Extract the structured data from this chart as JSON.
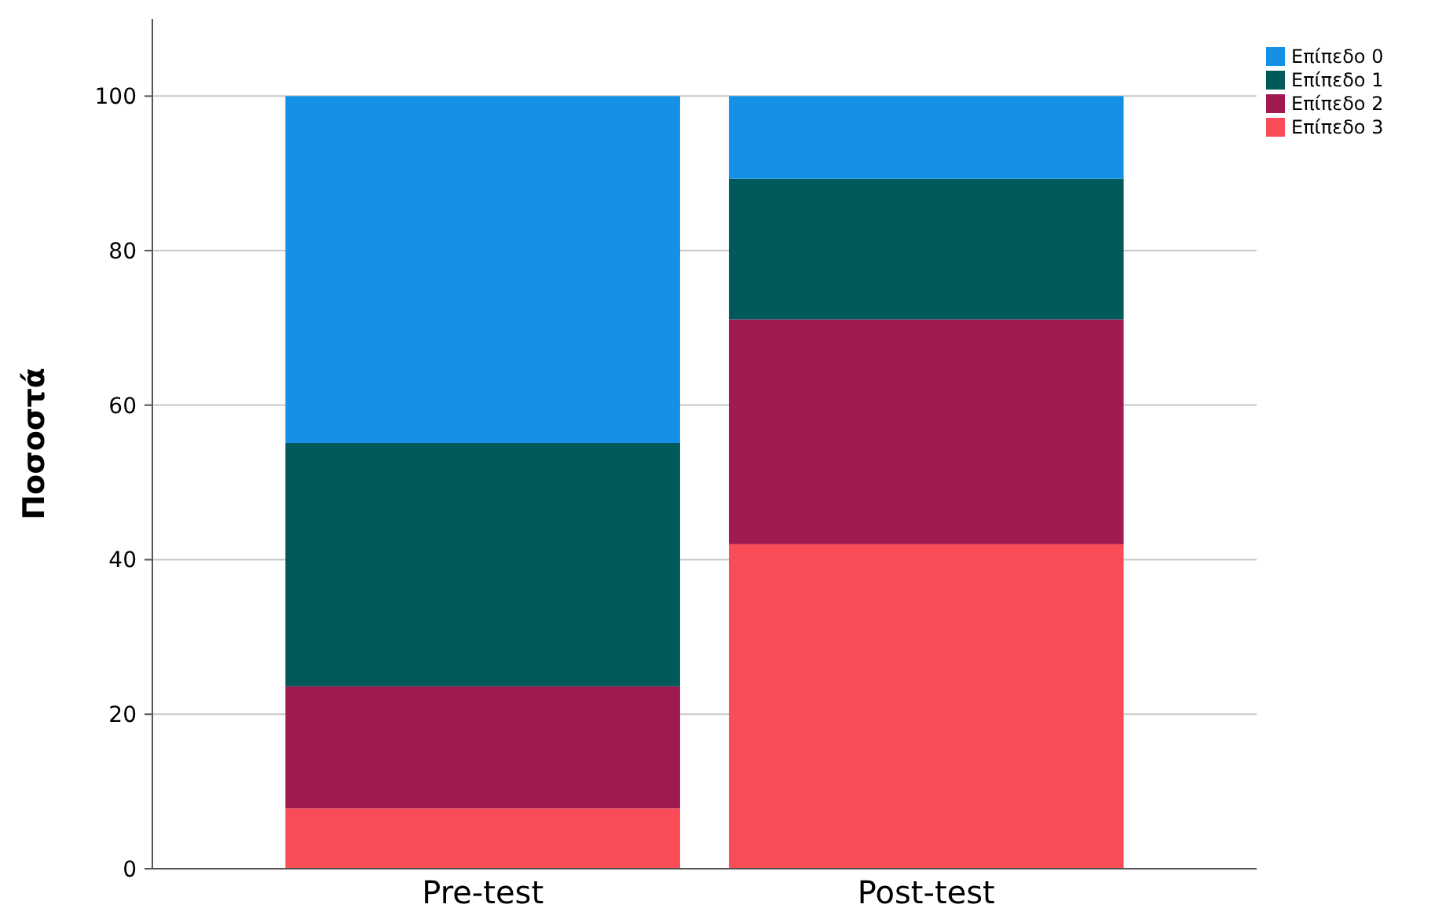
{
  "chart_data": {
    "type": "bar",
    "stacked": true,
    "ylabel": "Ποσοστά",
    "categories": [
      "Pre-test",
      "Post-test"
    ],
    "series": [
      {
        "name": "Επίπεδο 3",
        "color": "#fa4c56",
        "values": [
          7.8,
          42.0
        ]
      },
      {
        "name": "Επίπεδο 2",
        "color": "#9e1a50",
        "values": [
          15.8,
          29.1
        ]
      },
      {
        "name": "Επίπεδο 1",
        "color": "#005a5a",
        "values": [
          31.5,
          18.2
        ]
      },
      {
        "name": "Επίπεδο 0",
        "color": "#1490e6",
        "values": [
          44.9,
          10.7
        ]
      }
    ],
    "ylim": [
      0,
      110
    ],
    "yticks": [
      0,
      20,
      40,
      60,
      80,
      100
    ],
    "grid": "y",
    "legend": "top right"
  }
}
